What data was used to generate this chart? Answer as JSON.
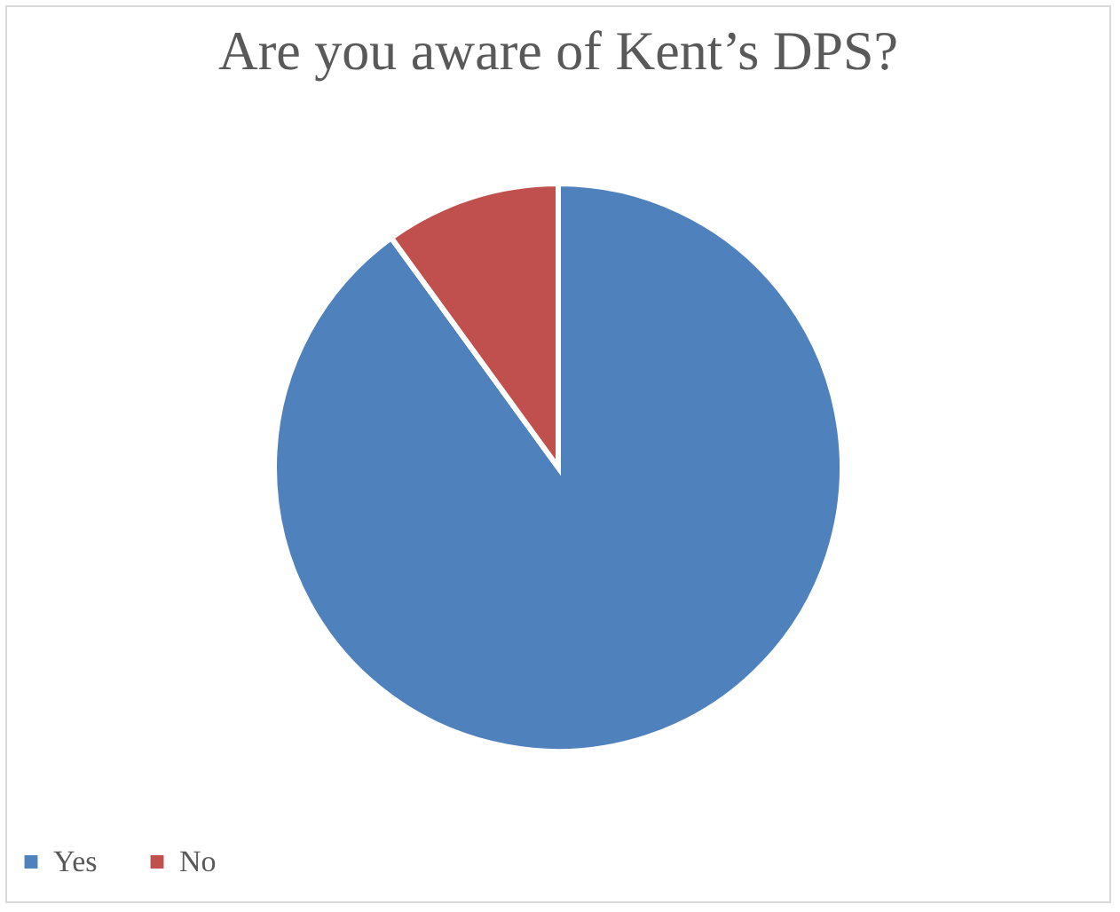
{
  "chart_data": {
    "type": "pie",
    "title": "Are you aware of Kent’s DPS?",
    "categories": [
      "Yes",
      "No"
    ],
    "values": [
      90,
      10
    ],
    "colors": [
      "#4f81bd",
      "#c0504d"
    ],
    "legend": "bottom"
  }
}
